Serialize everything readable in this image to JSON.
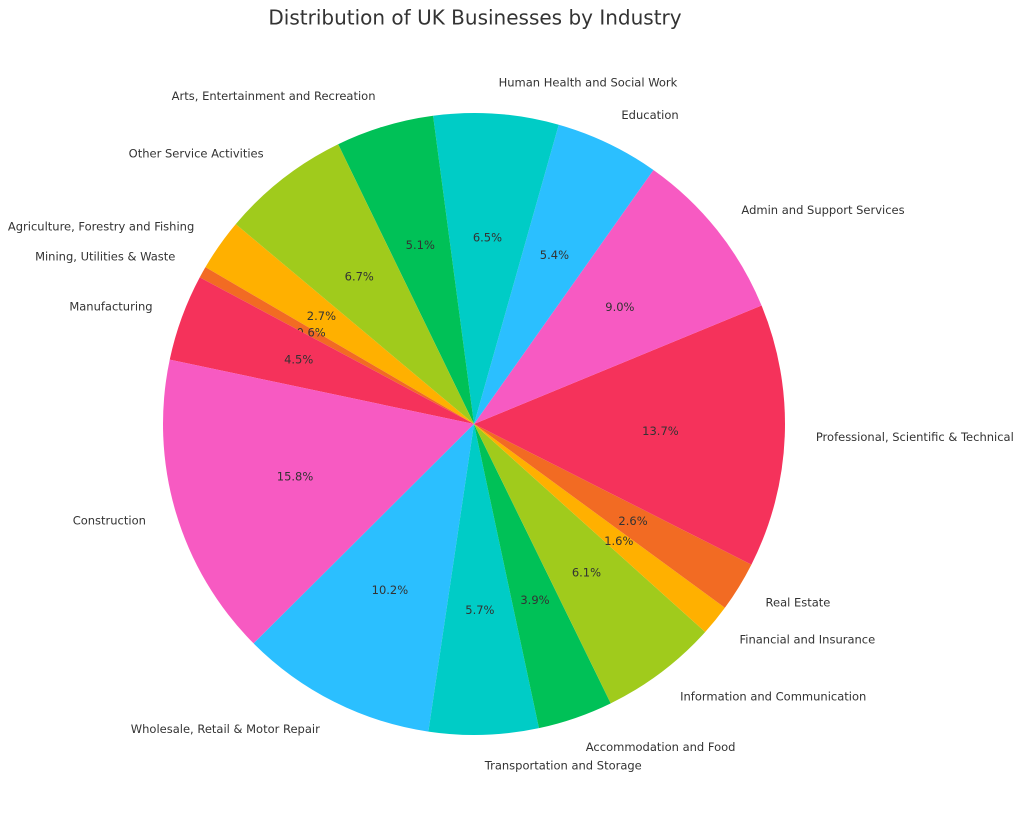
{
  "chart_data": {
    "type": "pie",
    "title": "Distribution of UK Businesses by Industry",
    "categories": [
      "Agriculture, Forestry and Fishing",
      "Mining, Utilities & Waste",
      "Manufacturing",
      "Construction",
      "Wholesale, Retail & Motor Repair",
      "Transportation and Storage",
      "Accommodation and Food",
      "Information and Communication",
      "Financial and Insurance",
      "Real Estate",
      "Professional, Scientific & Technical",
      "Admin and Support Services",
      "Education",
      "Human Health and Social Work",
      "Arts, Entertainment and Recreation",
      "Other Service Activities"
    ],
    "values": [
      2.7,
      0.6,
      4.5,
      15.8,
      10.2,
      5.7,
      3.9,
      6.1,
      1.6,
      2.6,
      13.7,
      9.0,
      5.4,
      6.5,
      5.1,
      6.7
    ],
    "value_labels": [
      "2.7%",
      "0.6%",
      "4.5%",
      "15.8%",
      "10.2%",
      "5.7%",
      "3.9%",
      "6.1%",
      "1.6%",
      "2.6%",
      "13.7%",
      "9.0%",
      "5.4%",
      "6.5%",
      "5.1%",
      "6.7%"
    ],
    "colors": [
      "#ffb000",
      "#f26b23",
      "#f5325b",
      "#f75ac2",
      "#2bbfff",
      "#00ccc6",
      "#00c157",
      "#a0cb1c",
      "#ffb000",
      "#f26b23",
      "#f5325b",
      "#f75ac2",
      "#2bbfff",
      "#00ccc6",
      "#00c157",
      "#a0cb1c"
    ]
  }
}
